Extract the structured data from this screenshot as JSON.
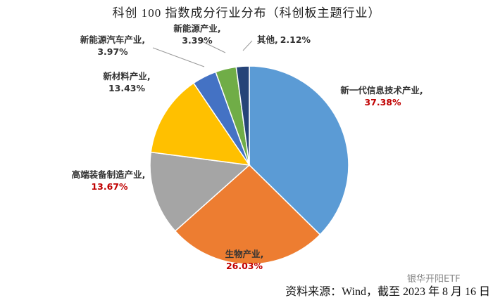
{
  "chart_data": {
    "type": "pie",
    "title": "科创 100 指数成分行业分布（科创板主题行业）",
    "categories": [
      "新一代信息技术产业,",
      "生物产业,",
      "高端装备制造产业,",
      "新材料产业,",
      "新能源汽车产业,",
      "新能源产业,",
      "其他,"
    ],
    "values": [
      37.38,
      26.03,
      13.67,
      13.43,
      3.97,
      3.39,
      2.12
    ],
    "value_labels": [
      "37.38%",
      "26.03%",
      "13.67%",
      "13.43%",
      "3.97%",
      "3.39%",
      "2.12%"
    ],
    "colors": [
      "#5b9bd5",
      "#ed7d31",
      "#a5a5a5",
      "#ffc000",
      "#4472c4",
      "#70ad47",
      "#264478"
    ],
    "value_label_colors": [
      "#c00000",
      "#c00000",
      "#c00000",
      "#333333",
      "#333333",
      "#333333",
      "#333333"
    ],
    "source": "资料来源：Wind，截至 2023 年 8 月 16 日",
    "watermark": "银华开阳ETF"
  }
}
